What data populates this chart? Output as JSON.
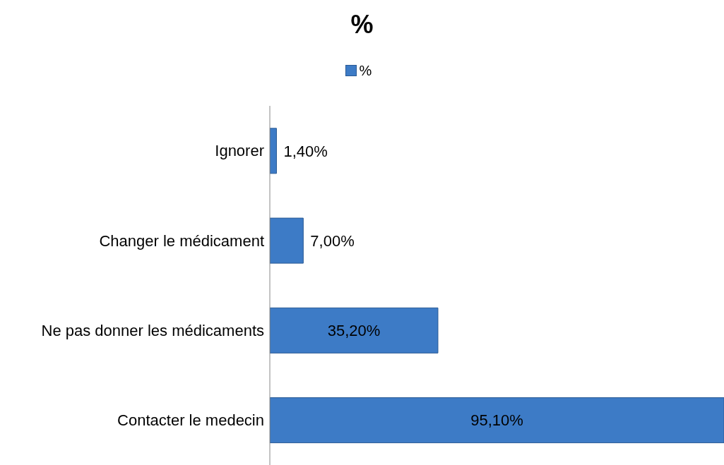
{
  "chart_data": {
    "type": "bar",
    "orientation": "horizontal",
    "title": "%",
    "legend": "top",
    "categories": [
      "Ignorer",
      "Changer le médicament",
      "Ne pas donner les médicaments",
      "Contacter le medecin"
    ],
    "series": [
      {
        "name": "%",
        "color": "#3d7bc6",
        "values": [
          1.4,
          7.0,
          35.2,
          95.1
        ],
        "value_labels": [
          "1,40%",
          "7,00%",
          "35,20%",
          "95,10%"
        ]
      }
    ]
  }
}
